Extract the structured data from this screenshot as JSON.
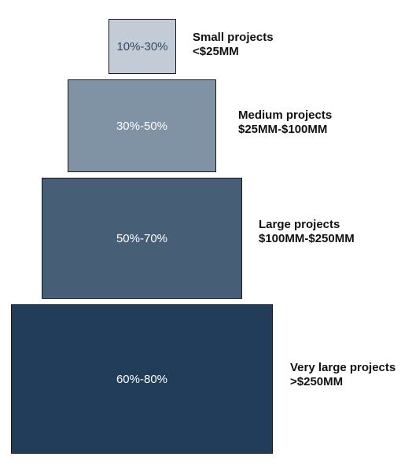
{
  "tiers": [
    {
      "range": "10%-30%",
      "name": "Small projects",
      "size": "<$25MM",
      "fill": "#c3ccd6",
      "text_color": "#2e4a66"
    },
    {
      "range": "30%-50%",
      "name": "Medium projects",
      "size": "$25MM-$100MM",
      "fill": "#7f93a5",
      "text_color": "#ffffff"
    },
    {
      "range": "50%-70%",
      "name": "Large projects",
      "size": "$100MM-$250MM",
      "fill": "#465f76",
      "text_color": "#ffffff"
    },
    {
      "range": "60%-80%",
      "name": "Very large projects",
      "size": ">$250MM",
      "fill": "#213d5a",
      "text_color": "#ffffff"
    }
  ]
}
